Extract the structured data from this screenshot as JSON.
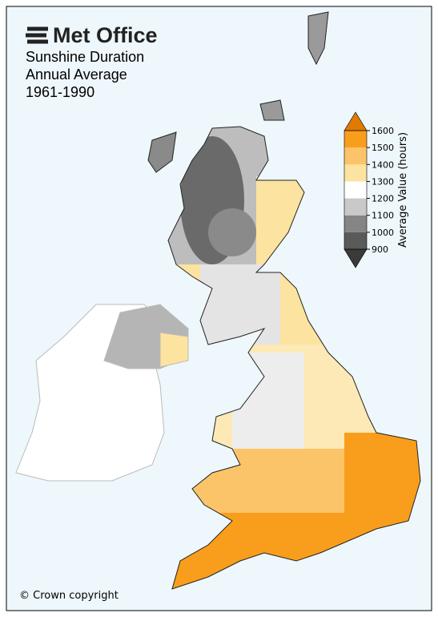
{
  "header": {
    "logo": "Met Office",
    "title_lines": [
      "Sunshine Duration",
      "Annual Average",
      "1961-1990"
    ]
  },
  "colorbar": {
    "label": "Average Value (hours)",
    "ticks": [
      900,
      1000,
      1100,
      1200,
      1300,
      1400,
      1500,
      1600
    ],
    "bin_colors": [
      "#5a5a5a",
      "#858585",
      "#c9c9c9",
      "#ffffff",
      "#fde3a0",
      "#fcc469",
      "#f99e1c"
    ],
    "under_color": "#3a3a3a",
    "over_color": "#e07a00"
  },
  "footer": {
    "copyright": "© Crown copyright"
  }
}
